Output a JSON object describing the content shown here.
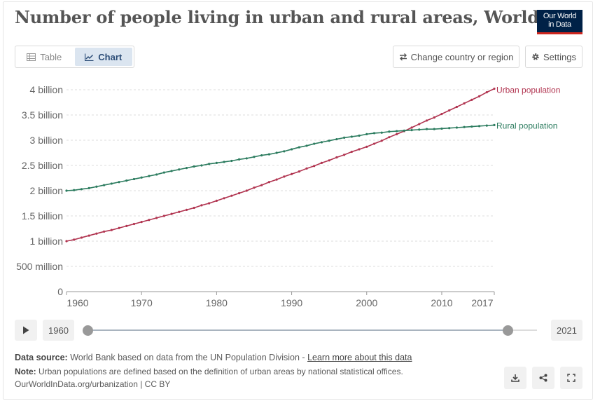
{
  "title": "Number of people living in urban and rural areas, World",
  "logo": {
    "line1": "Our World",
    "line2": "in Data"
  },
  "tabs": [
    {
      "label": "Table",
      "icon": "table-icon"
    },
    {
      "label": "Chart",
      "icon": "line-chart-icon",
      "active": true
    }
  ],
  "buttons": {
    "change": "Change country or region",
    "settings": "Settings"
  },
  "timeline": {
    "start_year": "1960",
    "end_year": "2021",
    "selected_start": 1960,
    "selected_end": 2017
  },
  "footer": {
    "source_label": "Data source:",
    "source_text": "World Bank based on data from the UN Population Division - ",
    "source_link": "Learn more about this data",
    "note_label": "Note:",
    "note_text": "Urban populations are defined based on the definition of urban areas by national statistical offices.",
    "credit": "OurWorldInData.org/urbanization | CC BY"
  },
  "colors": {
    "urban": "#b13450",
    "rural": "#2c7c5f",
    "grid": "#dddddd",
    "brand": "#002147",
    "brand_accent": "#ce261e"
  },
  "chart_data": {
    "type": "line",
    "x_start": 1960,
    "x_end": 2017,
    "ylim": [
      0,
      4200000000
    ],
    "y_ticks": [
      {
        "value": 0,
        "label": "0"
      },
      {
        "value": 500000000,
        "label": "500 million"
      },
      {
        "value": 1000000000,
        "label": "1 billion"
      },
      {
        "value": 1500000000,
        "label": "1.5 billion"
      },
      {
        "value": 2000000000,
        "label": "2 billion"
      },
      {
        "value": 2500000000,
        "label": "2.5 billion"
      },
      {
        "value": 3000000000,
        "label": "3 billion"
      },
      {
        "value": 3500000000,
        "label": "3.5 billion"
      },
      {
        "value": 4000000000,
        "label": "4 billion"
      }
    ],
    "x_ticks": [
      {
        "value": 1960,
        "label": "1960"
      },
      {
        "value": 1970,
        "label": "1970"
      },
      {
        "value": 1980,
        "label": "1980"
      },
      {
        "value": 1990,
        "label": "1990"
      },
      {
        "value": 2000,
        "label": "2000"
      },
      {
        "value": 2010,
        "label": "2010"
      },
      {
        "value": 2017,
        "label": "2017"
      }
    ],
    "grid": true,
    "series": [
      {
        "name": "Urban population",
        "color": "#b13450",
        "values": [
          1000000000.0,
          1030000000.0,
          1070000000.0,
          1110000000.0,
          1150000000.0,
          1190000000.0,
          1220000000.0,
          1260000000.0,
          1300000000.0,
          1340000000.0,
          1380000000.0,
          1420000000.0,
          1460000000.0,
          1500000000.0,
          1540000000.0,
          1580000000.0,
          1620000000.0,
          1660000000.0,
          1710000000.0,
          1750000000.0,
          1800000000.0,
          1850000000.0,
          1900000000.0,
          1950000000.0,
          2000000000.0,
          2060000000.0,
          2110000000.0,
          2170000000.0,
          2220000000.0,
          2280000000.0,
          2330000000.0,
          2380000000.0,
          2440000000.0,
          2490000000.0,
          2550000000.0,
          2600000000.0,
          2660000000.0,
          2710000000.0,
          2770000000.0,
          2820000000.0,
          2870000000.0,
          2930000000.0,
          2990000000.0,
          3060000000.0,
          3120000000.0,
          3180000000.0,
          3250000000.0,
          3320000000.0,
          3390000000.0,
          3450000000.0,
          3520000000.0,
          3590000000.0,
          3660000000.0,
          3730000000.0,
          3800000000.0,
          3870000000.0,
          3950000000.0,
          4020000000.0
        ]
      },
      {
        "name": "Rural population",
        "color": "#2c7c5f",
        "values": [
          2000000000.0,
          2010000000.0,
          2030000000.0,
          2050000000.0,
          2080000000.0,
          2110000000.0,
          2140000000.0,
          2170000000.0,
          2200000000.0,
          2230000000.0,
          2260000000.0,
          2290000000.0,
          2320000000.0,
          2360000000.0,
          2390000000.0,
          2420000000.0,
          2450000000.0,
          2480000000.0,
          2500000000.0,
          2530000000.0,
          2550000000.0,
          2570000000.0,
          2590000000.0,
          2620000000.0,
          2640000000.0,
          2670000000.0,
          2700000000.0,
          2720000000.0,
          2750000000.0,
          2780000000.0,
          2820000000.0,
          2860000000.0,
          2890000000.0,
          2930000000.0,
          2960000000.0,
          2990000000.0,
          3020000000.0,
          3050000000.0,
          3070000000.0,
          3090000000.0,
          3120000000.0,
          3140000000.0,
          3150000000.0,
          3170000000.0,
          3180000000.0,
          3190000000.0,
          3200000000.0,
          3210000000.0,
          3220000000.0,
          3220000000.0,
          3230000000.0,
          3240000000.0,
          3250000000.0,
          3260000000.0,
          3270000000.0,
          3280000000.0,
          3290000000.0,
          3300000000.0
        ]
      }
    ]
  }
}
